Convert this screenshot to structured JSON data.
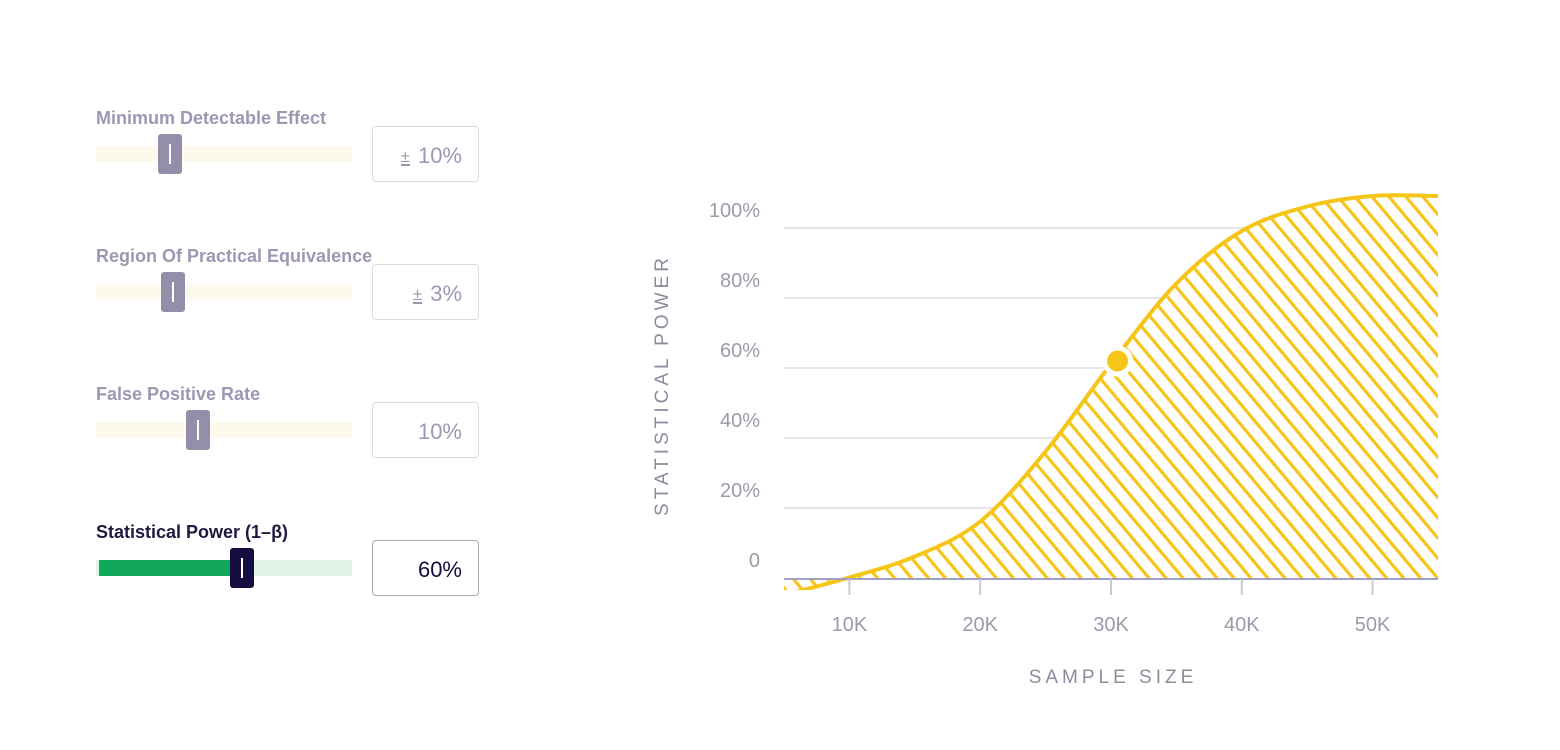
{
  "controls": [
    {
      "label": "Minimum Detectable Effect",
      "prefix": "±",
      "value": "10%",
      "slider_fraction": 0.29,
      "active": false
    },
    {
      "label": "Region Of Practical Equivalence",
      "prefix": "±",
      "value": "3%",
      "slider_fraction": 0.3,
      "active": false
    },
    {
      "label": "False Positive Rate",
      "prefix": "",
      "value": "10%",
      "slider_fraction": 0.4,
      "active": false
    },
    {
      "label": "Statistical Power (1–β)",
      "prefix": "",
      "value": "60%",
      "slider_fraction": 0.57,
      "active": true
    }
  ],
  "colors": {
    "curve": "#f5c518",
    "marker": "#f5c518",
    "active_fill": "#11a85b",
    "active_thumb": "#140e40",
    "inactive_thumb": "#938fab",
    "grid": "#e6e6ea",
    "baseline": "#9fa0c8"
  },
  "chart_data": {
    "type": "area",
    "xlabel": "SAMPLE SIZE",
    "ylabel": "STATISTICAL POWER",
    "x_ticks": [
      {
        "value": 10000,
        "label": "10K"
      },
      {
        "value": 20000,
        "label": "20K"
      },
      {
        "value": 30000,
        "label": "30K"
      },
      {
        "value": 40000,
        "label": "40K"
      },
      {
        "value": 50000,
        "label": "50K"
      }
    ],
    "y_ticks": [
      {
        "value": 0,
        "label": "0"
      },
      {
        "value": 20,
        "label": "20%"
      },
      {
        "value": 40,
        "label": "40%"
      },
      {
        "value": 60,
        "label": "60%"
      },
      {
        "value": 80,
        "label": "80%"
      },
      {
        "value": 100,
        "label": "100%"
      }
    ],
    "xlim": [
      5000,
      55000
    ],
    "ylim": [
      -10,
      104
    ],
    "grid": true,
    "fill_pattern": "diagonal-hatch",
    "series": [
      {
        "x": [
          5000,
          10000,
          15000,
          20000,
          25000,
          30000,
          35000,
          40000,
          45000,
          50000,
          55000
        ],
        "y": [
          -10,
          -5,
          1,
          11,
          31,
          56,
          79,
          94,
          101,
          104,
          104
        ]
      }
    ],
    "marker": {
      "x": 30500,
      "y": 60
    }
  }
}
